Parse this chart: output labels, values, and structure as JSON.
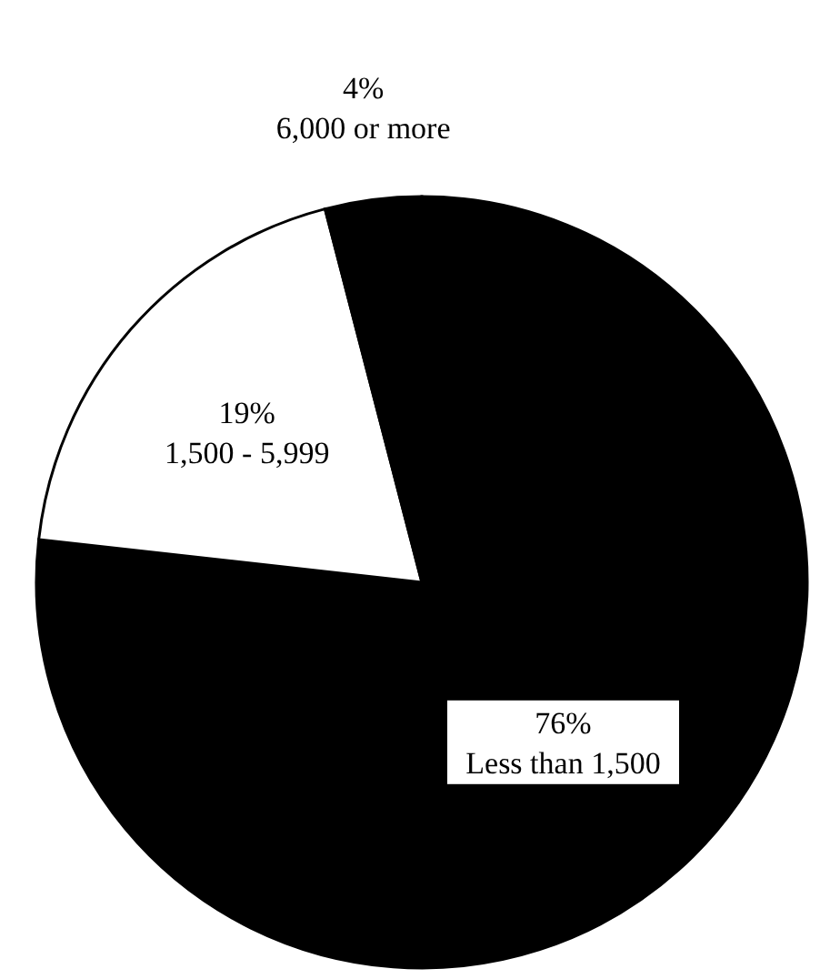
{
  "chart_data": {
    "type": "pie",
    "categories": [
      "Less than 1,500",
      "1,500 - 5,999",
      "6,000 or more"
    ],
    "values": [
      76,
      19,
      4
    ],
    "value_labels": [
      "76%",
      "19%",
      "4%"
    ],
    "colors": [
      "#000000",
      "#ffffff",
      "#000000"
    ]
  }
}
